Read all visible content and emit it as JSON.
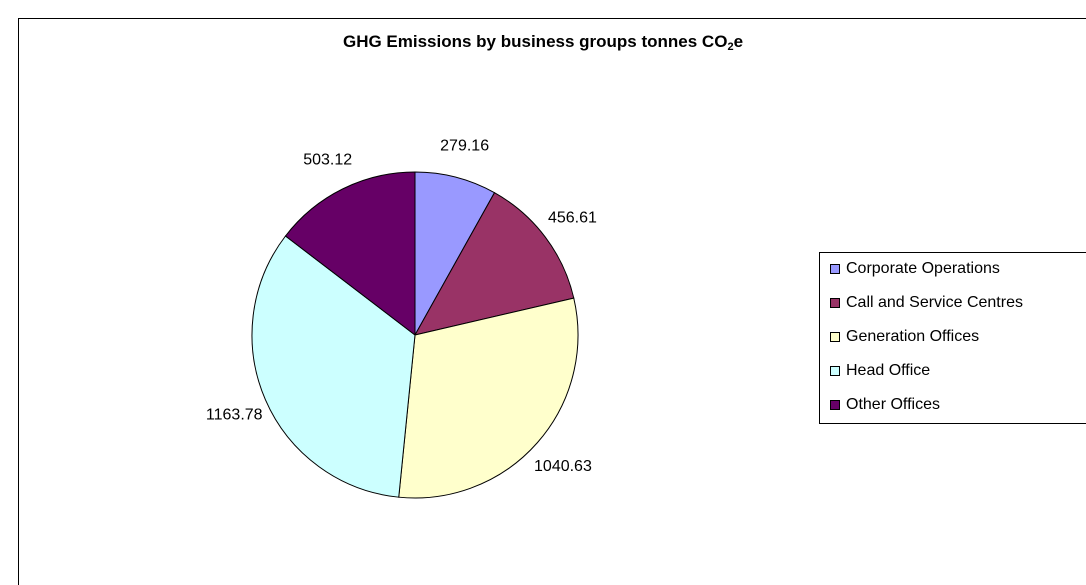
{
  "chart_data": {
    "type": "pie",
    "title_main": "GHG Emissions by business groups tonnes CO",
    "title_sub": "2",
    "title_end": "e",
    "categories": [
      "Corporate Operations",
      "Call and Service Centres",
      "Generation Offices",
      "Head Office",
      "Other Offices"
    ],
    "values": [
      279.16,
      456.61,
      1040.63,
      1163.78,
      503.12
    ],
    "data_labels": [
      "279.16",
      "456.61",
      "1040.63",
      "1163.78",
      "503.12"
    ],
    "colors": [
      "#9999ff",
      "#993366",
      "#ffffcc",
      "#ccffff",
      "#660066"
    ],
    "legend_position": "right"
  }
}
